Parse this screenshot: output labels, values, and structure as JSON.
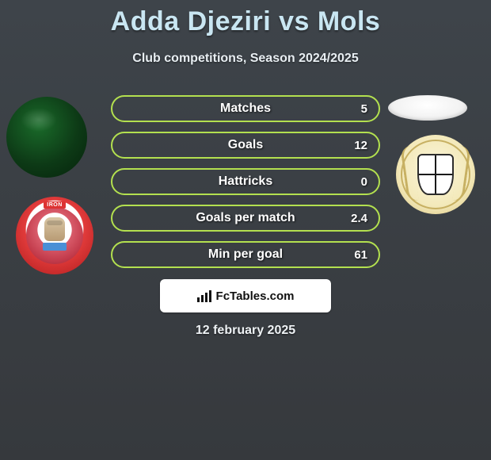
{
  "title": "Adda Djeziri vs Mols",
  "subtitle": "Club competitions, Season 2024/2025",
  "date": "12 february 2025",
  "footer_brand": "FcTables.com",
  "colors": {
    "pill_border": "#b3e04f",
    "title_color": "#c9e6f2",
    "text_color": "#ffffff",
    "bg_top": "#3e444a",
    "bg_bottom": "#36393d"
  },
  "stats": [
    {
      "label": "Matches",
      "value": "5"
    },
    {
      "label": "Goals",
      "value": "12"
    },
    {
      "label": "Hattricks",
      "value": "0"
    },
    {
      "label": "Goals per match",
      "value": "2.4"
    },
    {
      "label": "Min per goal",
      "value": "61"
    }
  ]
}
